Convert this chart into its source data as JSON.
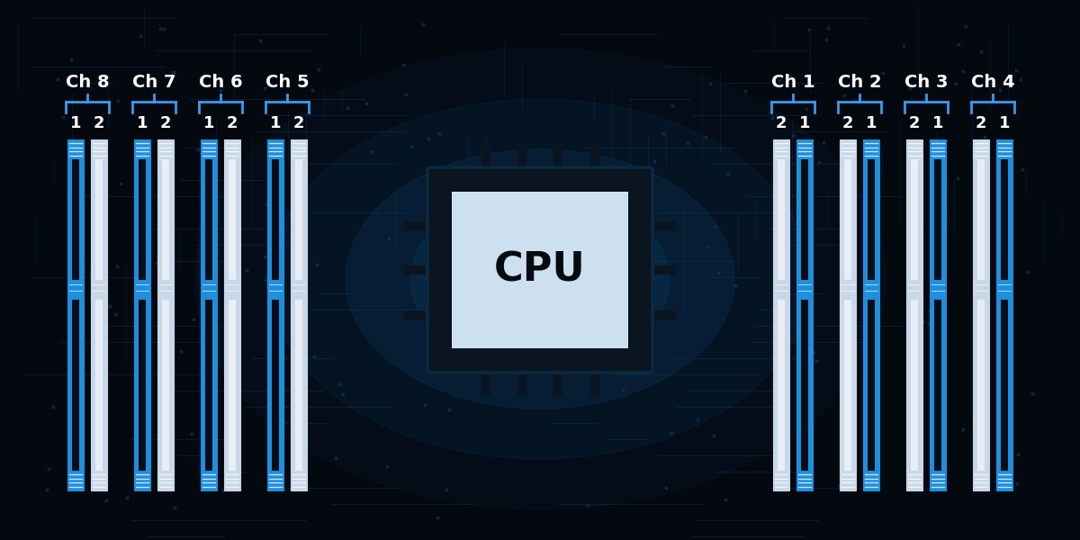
{
  "bg_color": "#04080f",
  "glow_color": "#1060a0",
  "blue_slot_color": "#1e8fdd",
  "white_slot_inner": "#c8d8e8",
  "white_slot_edge": "#8090a0",
  "dark_inner": "#080e18",
  "cpu_surround": "#0a1520",
  "cpu_face": "#cce0f0",
  "cpu_text_color": "#050a10",
  "label_color": "#ffffff",
  "bracket_color": "#3a9aee",
  "circuit_line_color": "#0e3a60",
  "left_channels": [
    "Ch 8",
    "Ch 7",
    "Ch 6",
    "Ch 5"
  ],
  "right_channels": [
    "Ch 4",
    "Ch 3",
    "Ch 2",
    "Ch 1"
  ],
  "left_slot_labels": [
    "1",
    "2",
    "1",
    "2",
    "1",
    "2",
    "1",
    "2"
  ],
  "right_slot_labels": [
    "2",
    "1",
    "2",
    "1",
    "2",
    "1",
    "2",
    "1"
  ],
  "left_blue": [
    true,
    false,
    true,
    false,
    true,
    false,
    true,
    false
  ],
  "right_blue": [
    false,
    true,
    false,
    true,
    false,
    true,
    false,
    true
  ],
  "fig_w": 12.0,
  "fig_h": 6.0,
  "dpi": 100
}
